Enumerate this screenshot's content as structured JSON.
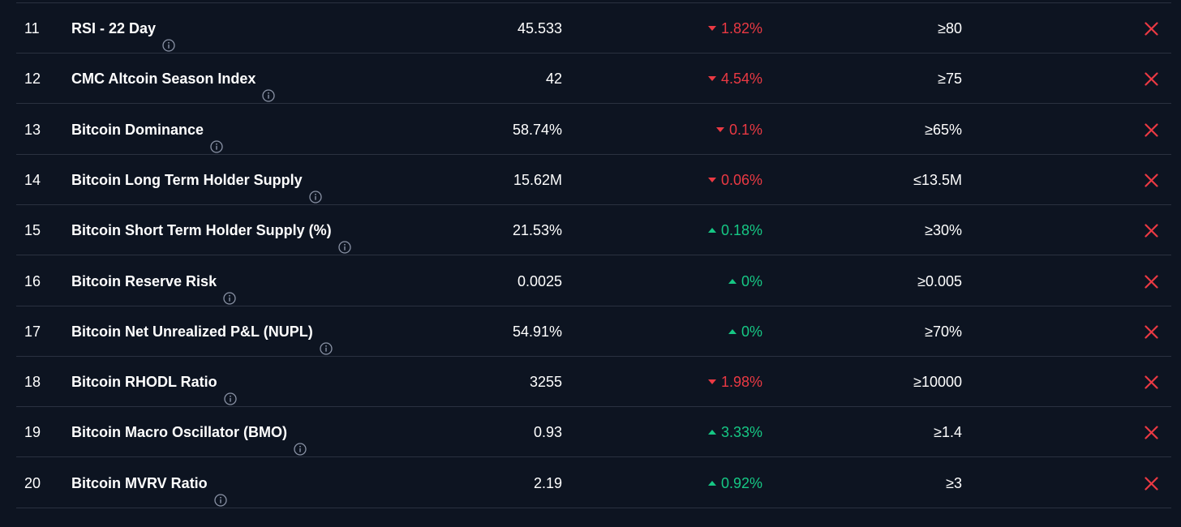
{
  "colors": {
    "background": "#0d1421",
    "divider": "#2a3140",
    "negative": "#ea3943",
    "positive": "#16c784",
    "fail_mark": "#ea3943"
  },
  "icons": {
    "info": "info-circle-icon",
    "status": "x-mark-icon",
    "down": "triangle-down-icon",
    "up": "triangle-up-icon"
  },
  "rows": [
    {
      "rank": "11",
      "name": "RSI - 22 Day",
      "value": "45.533",
      "direction": "down",
      "change": "1.82%",
      "target": "≥80"
    },
    {
      "rank": "12",
      "name": "CMC Altcoin Season Index",
      "value": "42",
      "direction": "down",
      "change": "4.54%",
      "target": "≥75"
    },
    {
      "rank": "13",
      "name": "Bitcoin Dominance",
      "value": "58.74%",
      "direction": "down",
      "change": "0.1%",
      "target": "≥65%"
    },
    {
      "rank": "14",
      "name": "Bitcoin Long Term Holder Supply",
      "value": "15.62M",
      "direction": "down",
      "change": "0.06%",
      "target": "≤13.5M"
    },
    {
      "rank": "15",
      "name": "Bitcoin Short Term Holder Supply (%)",
      "value": "21.53%",
      "direction": "up",
      "change": "0.18%",
      "target": "≥30%"
    },
    {
      "rank": "16",
      "name": "Bitcoin Reserve Risk",
      "value": "0.0025",
      "direction": "up",
      "change": "0%",
      "target": "≥0.005"
    },
    {
      "rank": "17",
      "name": "Bitcoin Net Unrealized P&L (NUPL)",
      "value": "54.91%",
      "direction": "up",
      "change": "0%",
      "target": "≥70%"
    },
    {
      "rank": "18",
      "name": "Bitcoin RHODL Ratio",
      "value": "3255",
      "direction": "down",
      "change": "1.98%",
      "target": "≥10000"
    },
    {
      "rank": "19",
      "name": "Bitcoin Macro Oscillator (BMO)",
      "value": "0.93",
      "direction": "up",
      "change": "3.33%",
      "target": "≥1.4"
    },
    {
      "rank": "20",
      "name": "Bitcoin MVRV Ratio",
      "value": "2.19",
      "direction": "up",
      "change": "0.92%",
      "target": "≥3"
    }
  ]
}
